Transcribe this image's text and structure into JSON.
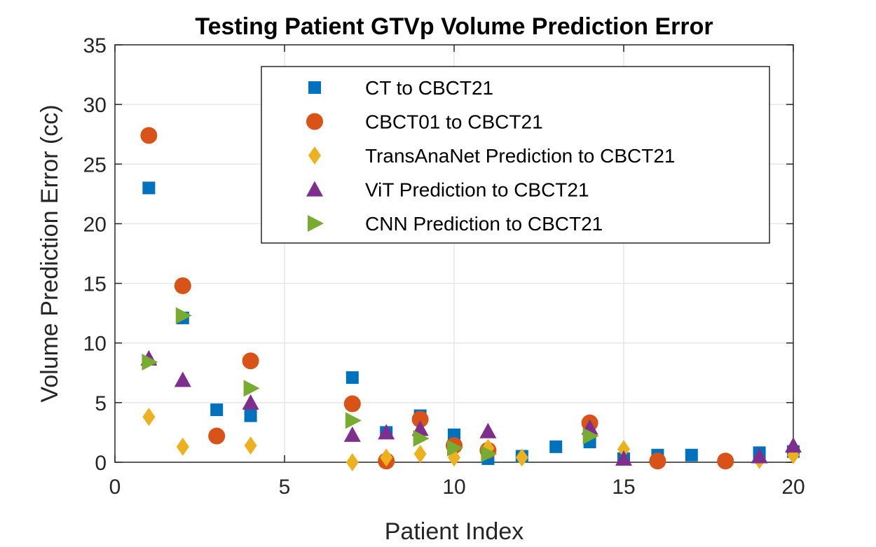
{
  "chart_data": {
    "type": "scatter",
    "title": "Testing Patient GTVp Volume Prediction Error",
    "xlabel": "Patient Index",
    "ylabel": "Volume Prediction Error (cc)",
    "xlim": [
      0,
      20
    ],
    "ylim": [
      0,
      35
    ],
    "xticks": [
      0,
      5,
      10,
      15,
      20
    ],
    "yticks": [
      0,
      5,
      10,
      15,
      20,
      25,
      30,
      35
    ],
    "grid": true,
    "legend_position": "top-right",
    "series": [
      {
        "name": "CT to CBCT21",
        "marker": "square",
        "color": "#0072BD",
        "x": [
          1,
          2,
          3,
          4,
          7,
          8,
          9,
          10,
          11,
          12,
          13,
          14,
          15,
          16,
          17,
          19,
          20
        ],
        "y": [
          23,
          12.1,
          4.4,
          3.9,
          7.1,
          2.5,
          3.9,
          2.3,
          0.3,
          0.5,
          1.3,
          1.7,
          0.3,
          0.6,
          0.6,
          0.8,
          0.9
        ]
      },
      {
        "name": "CBCT01 to CBCT21",
        "marker": "circle",
        "color": "#D95319",
        "x": [
          1,
          2,
          3,
          4,
          7,
          8,
          9,
          10,
          11,
          14,
          16,
          18
        ],
        "y": [
          27.4,
          14.8,
          2.2,
          8.5,
          4.9,
          0.1,
          3.6,
          1.4,
          1.0,
          3.3,
          0.1,
          0.1
        ]
      },
      {
        "name": "TransAnaNet Prediction to CBCT21",
        "marker": "diamond",
        "color": "#EDB120",
        "x": [
          1,
          2,
          4,
          7,
          8,
          9,
          10,
          11,
          12,
          15,
          19,
          20
        ],
        "y": [
          3.8,
          1.3,
          1.4,
          0.0,
          0.4,
          0.7,
          0.4,
          1.2,
          0.4,
          1.1,
          0.2,
          0.6
        ]
      },
      {
        "name": "ViT Prediction to CBCT21",
        "marker": "triangle-up",
        "color": "#7E2F8E",
        "x": [
          1,
          2,
          4,
          7,
          8,
          9,
          11,
          14,
          15,
          19,
          20
        ],
        "y": [
          8.7,
          6.9,
          5.0,
          2.3,
          2.5,
          2.8,
          2.6,
          2.9,
          0.3,
          0.5,
          1.4
        ]
      },
      {
        "name": "CNN Prediction to CBCT21",
        "marker": "triangle-right",
        "color": "#77AC30",
        "x": [
          1,
          2,
          4,
          7,
          9,
          10,
          11,
          14
        ],
        "y": [
          8.4,
          12.3,
          6.2,
          3.5,
          2.0,
          1.2,
          0.7,
          2.2
        ]
      }
    ]
  }
}
